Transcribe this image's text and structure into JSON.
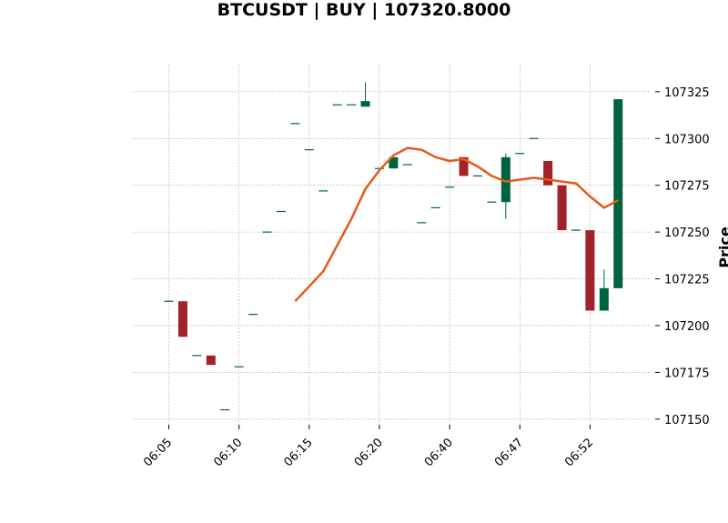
{
  "colors": {
    "up": "#006340",
    "down": "#a3212a",
    "ma_line": "#e8581c",
    "grid": "#b0b0b0",
    "background": "#ffffff"
  },
  "chart_data": {
    "type": "candlestick",
    "title": "BTCUSDT | BUY | 107320.8000",
    "ylabel": "Price",
    "xlabel": "",
    "grid": true,
    "ylim": [
      107147,
      107340
    ],
    "y_ticks": [
      107150,
      107175,
      107200,
      107225,
      107250,
      107275,
      107300,
      107325
    ],
    "x_tick_labels": [
      "06:05",
      "06:10",
      "06:15",
      "06:20",
      "06:40",
      "06:47",
      "06:52"
    ],
    "x_tick_candle_index": [
      0,
      5,
      10,
      15,
      20,
      25,
      30
    ],
    "candles": [
      {
        "open": 107213,
        "high": 107213,
        "low": 107213,
        "close": 107213
      },
      {
        "open": 107213,
        "high": 107213,
        "low": 107194,
        "close": 107194
      },
      {
        "open": 107184,
        "high": 107184,
        "low": 107184,
        "close": 107184
      },
      {
        "open": 107184,
        "high": 107184,
        "low": 107179,
        "close": 107179
      },
      {
        "open": 107155,
        "high": 107155,
        "low": 107155,
        "close": 107155
      },
      {
        "open": 107178,
        "high": 107178,
        "low": 107178,
        "close": 107178
      },
      {
        "open": 107206,
        "high": 107206,
        "low": 107206,
        "close": 107206
      },
      {
        "open": 107250,
        "high": 107250,
        "low": 107250,
        "close": 107250
      },
      {
        "open": 107261,
        "high": 107261,
        "low": 107261,
        "close": 107261
      },
      {
        "open": 107308,
        "high": 107308,
        "low": 107308,
        "close": 107308
      },
      {
        "open": 107294,
        "high": 107294,
        "low": 107294,
        "close": 107294
      },
      {
        "open": 107272,
        "high": 107272,
        "low": 107272,
        "close": 107272
      },
      {
        "open": 107318,
        "high": 107318,
        "low": 107318,
        "close": 107318
      },
      {
        "open": 107318,
        "high": 107318,
        "low": 107318,
        "close": 107318
      },
      {
        "open": 107317,
        "high": 107330,
        "low": 107317,
        "close": 107320
      },
      {
        "open": 107284,
        "high": 107284,
        "low": 107284,
        "close": 107284
      },
      {
        "open": 107284,
        "high": 107290,
        "low": 107284,
        "close": 107290
      },
      {
        "open": 107286,
        "high": 107286,
        "low": 107286,
        "close": 107286
      },
      {
        "open": 107255,
        "high": 107255,
        "low": 107255,
        "close": 107255
      },
      {
        "open": 107263,
        "high": 107263,
        "low": 107263,
        "close": 107263
      },
      {
        "open": 107274,
        "high": 107274,
        "low": 107274,
        "close": 107274
      },
      {
        "open": 107290,
        "high": 107290,
        "low": 107280,
        "close": 107280
      },
      {
        "open": 107280,
        "high": 107280,
        "low": 107280,
        "close": 107280
      },
      {
        "open": 107266,
        "high": 107266,
        "low": 107266,
        "close": 107266
      },
      {
        "open": 107266,
        "high": 107292,
        "low": 107257,
        "close": 107290
      },
      {
        "open": 107292,
        "high": 107292,
        "low": 107292,
        "close": 107292
      },
      {
        "open": 107300,
        "high": 107300,
        "low": 107300,
        "close": 107300
      },
      {
        "open": 107288,
        "high": 107288,
        "low": 107275,
        "close": 107275
      },
      {
        "open": 107275,
        "high": 107275,
        "low": 107251,
        "close": 107251
      },
      {
        "open": 107251,
        "high": 107251,
        "low": 107251,
        "close": 107251
      },
      {
        "open": 107251,
        "high": 107251,
        "low": 107208,
        "close": 107208
      },
      {
        "open": 107208,
        "high": 107230,
        "low": 107208,
        "close": 107220
      },
      {
        "open": 107220,
        "high": 107321,
        "low": 107220,
        "close": 107321
      }
    ],
    "ma_series": {
      "start_index": 9,
      "values": [
        107213,
        107221,
        107229,
        107243,
        107257,
        107273,
        107283,
        107291,
        107295,
        107294,
        107290,
        107288,
        107289,
        107285,
        107280,
        107277,
        107278,
        107279,
        107278,
        107277,
        107276,
        107269,
        107263,
        107267
      ]
    }
  }
}
